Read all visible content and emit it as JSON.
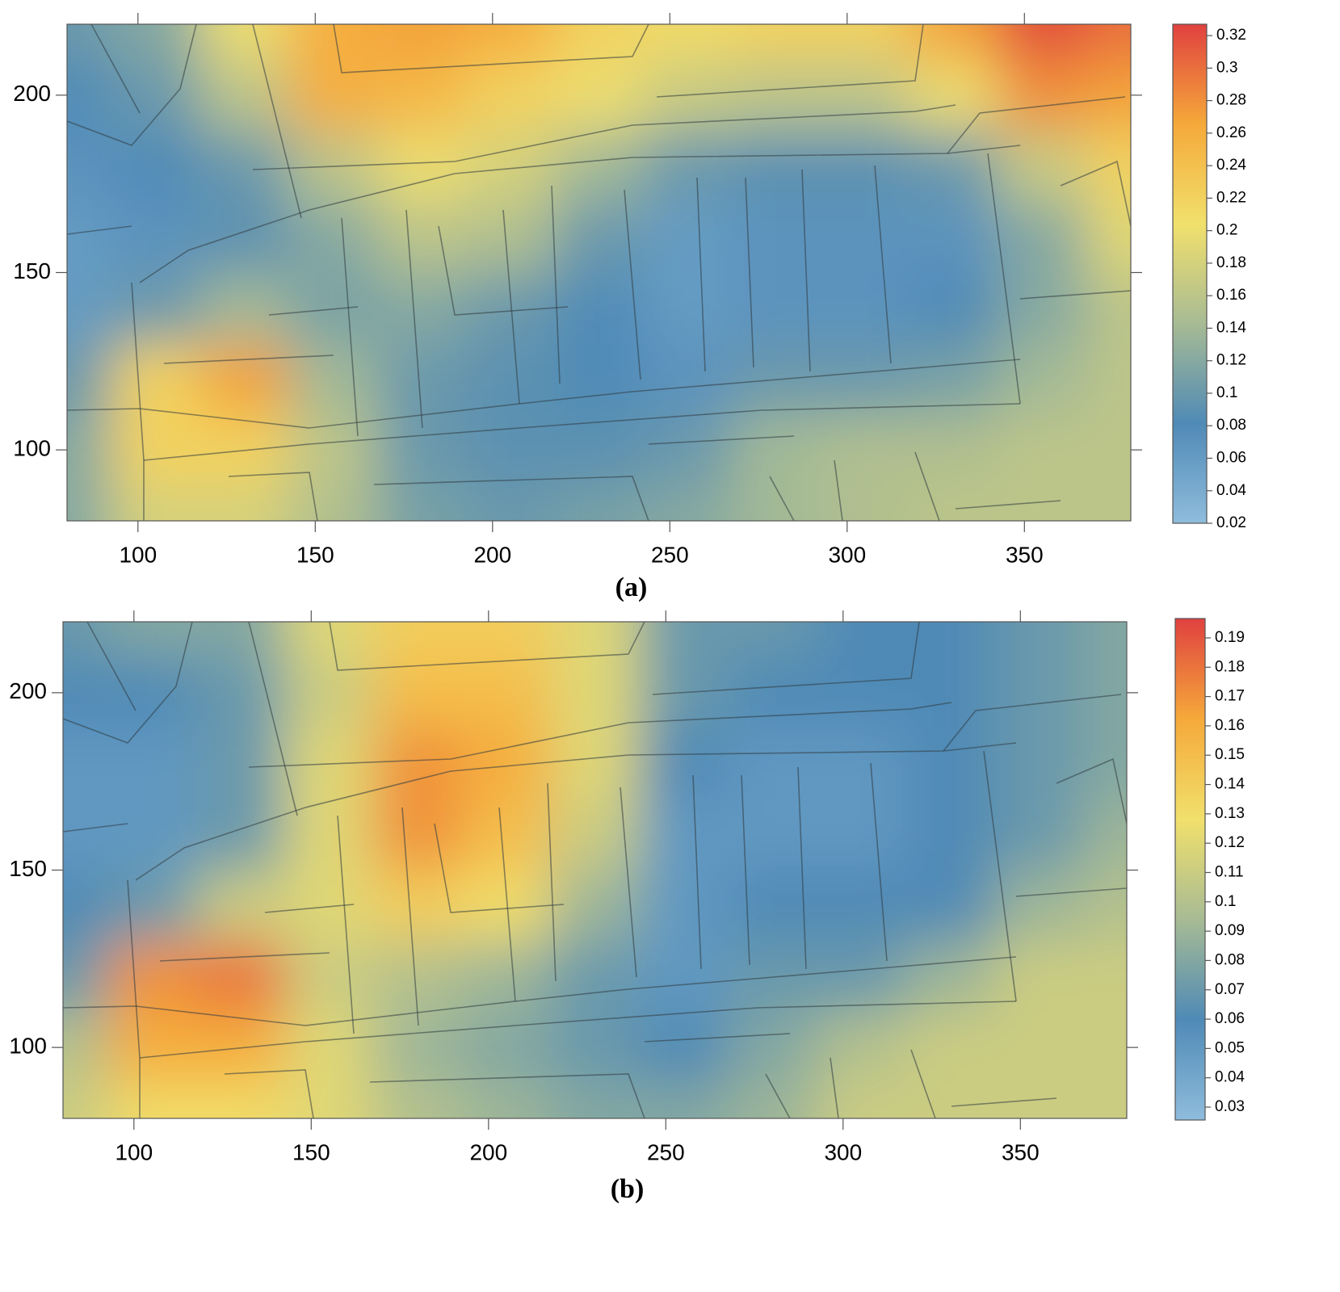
{
  "chart_data": [
    {
      "type": "heatmap",
      "caption": "(a)",
      "x": [
        80,
        105,
        130,
        155,
        180,
        205,
        230,
        255,
        280,
        305,
        330,
        355,
        380
      ],
      "y": [
        220,
        200,
        180,
        160,
        140,
        120,
        100,
        80
      ],
      "z": [
        [
          0.1,
          0.12,
          0.2,
          0.26,
          0.27,
          0.26,
          0.22,
          0.21,
          0.22,
          0.22,
          0.27,
          0.32,
          0.3
        ],
        [
          0.08,
          0.1,
          0.16,
          0.26,
          0.25,
          0.22,
          0.2,
          0.17,
          0.16,
          0.16,
          0.2,
          0.28,
          0.27
        ],
        [
          0.07,
          0.08,
          0.1,
          0.16,
          0.2,
          0.18,
          0.14,
          0.1,
          0.09,
          0.09,
          0.1,
          0.17,
          0.22
        ],
        [
          0.06,
          0.07,
          0.09,
          0.12,
          0.16,
          0.15,
          0.1,
          0.06,
          0.07,
          0.07,
          0.07,
          0.12,
          0.19
        ],
        [
          0.06,
          0.1,
          0.14,
          0.11,
          0.12,
          0.1,
          0.08,
          0.06,
          0.07,
          0.07,
          0.08,
          0.12,
          0.16
        ],
        [
          0.1,
          0.22,
          0.27,
          0.14,
          0.1,
          0.09,
          0.08,
          0.07,
          0.1,
          0.1,
          0.11,
          0.14,
          0.16
        ],
        [
          0.12,
          0.22,
          0.22,
          0.16,
          0.1,
          0.09,
          0.09,
          0.1,
          0.14,
          0.15,
          0.15,
          0.16,
          0.16
        ],
        [
          0.12,
          0.18,
          0.18,
          0.15,
          0.11,
          0.1,
          0.11,
          0.12,
          0.14,
          0.15,
          0.16,
          0.16,
          0.16
        ]
      ],
      "xlim": [
        80,
        380
      ],
      "ylim": [
        80,
        220
      ],
      "xticks": [
        100,
        150,
        200,
        250,
        300,
        350
      ],
      "yticks": [
        100,
        150,
        200
      ],
      "clim": [
        0.02,
        0.327
      ],
      "cticks": [
        0.02,
        0.04,
        0.06,
        0.08,
        0.1,
        0.12,
        0.14,
        0.16,
        0.18,
        0.2,
        0.22,
        0.24,
        0.26,
        0.28,
        0.3,
        0.32
      ],
      "colormap": [
        "#8fbcdc",
        "#4f8ab6",
        "#a7bb94",
        "#f1e06c",
        "#f5a93a",
        "#e0413f"
      ]
    },
    {
      "type": "heatmap",
      "caption": "(b)",
      "x": [
        80,
        105,
        130,
        155,
        180,
        205,
        230,
        255,
        280,
        305,
        330,
        355,
        380
      ],
      "y": [
        220,
        200,
        180,
        160,
        140,
        120,
        100,
        80
      ],
      "z": [
        [
          0.07,
          0.08,
          0.08,
          0.12,
          0.14,
          0.14,
          0.12,
          0.07,
          0.07,
          0.06,
          0.06,
          0.07,
          0.08
        ],
        [
          0.06,
          0.06,
          0.07,
          0.11,
          0.15,
          0.15,
          0.12,
          0.07,
          0.06,
          0.06,
          0.06,
          0.07,
          0.08
        ],
        [
          0.05,
          0.05,
          0.07,
          0.12,
          0.17,
          0.16,
          0.12,
          0.06,
          0.05,
          0.05,
          0.06,
          0.07,
          0.08
        ],
        [
          0.05,
          0.05,
          0.07,
          0.12,
          0.17,
          0.15,
          0.11,
          0.05,
          0.05,
          0.05,
          0.06,
          0.07,
          0.09
        ],
        [
          0.06,
          0.07,
          0.11,
          0.12,
          0.14,
          0.13,
          0.09,
          0.05,
          0.06,
          0.06,
          0.06,
          0.09,
          0.1
        ],
        [
          0.07,
          0.17,
          0.18,
          0.11,
          0.1,
          0.09,
          0.07,
          0.05,
          0.07,
          0.07,
          0.09,
          0.11,
          0.11
        ],
        [
          0.1,
          0.16,
          0.16,
          0.12,
          0.09,
          0.08,
          0.07,
          0.06,
          0.08,
          0.1,
          0.11,
          0.11,
          0.11
        ],
        [
          0.11,
          0.13,
          0.13,
          0.12,
          0.1,
          0.09,
          0.08,
          0.08,
          0.09,
          0.11,
          0.11,
          0.11,
          0.11
        ]
      ],
      "xlim": [
        80,
        380
      ],
      "ylim": [
        80,
        220
      ],
      "xticks": [
        100,
        150,
        200,
        250,
        300,
        350
      ],
      "yticks": [
        100,
        150,
        200
      ],
      "clim": [
        0.0256,
        0.1966
      ],
      "cticks": [
        0.03,
        0.04,
        0.05,
        0.06,
        0.07,
        0.08,
        0.09,
        0.1,
        0.11,
        0.12,
        0.13,
        0.14,
        0.15,
        0.16,
        0.17,
        0.18,
        0.19
      ],
      "colormap": [
        "#8fbcdc",
        "#4f8ab6",
        "#a7bb94",
        "#f1e06c",
        "#f5a93a",
        "#e0413f"
      ]
    }
  ]
}
